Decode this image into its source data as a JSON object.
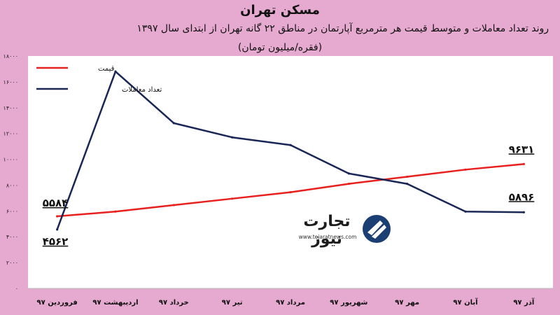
{
  "chart_data": {
    "type": "line",
    "title": "مسکن تهران",
    "subtitle": "روند تعداد معاملات و متوسط قیمت هر مترمربع آپارتمان در مناطق ۲۲ گانه تهران از ابتدای سال ۱۳۹۷",
    "unit_note": "(فقره/میلیون تومان)",
    "categories": [
      "فروردین ۹۷",
      "اردیبهشت ۹۷",
      "خرداد ۹۷",
      "تیر ۹۷",
      "مرداد ۹۷",
      "شهریور ۹۷",
      "مهر ۹۷",
      "آبان ۹۷",
      "آذر ۹۷"
    ],
    "y_ticks": [
      "۰",
      "۲۰۰۰",
      "۴۰۰۰",
      "۶۰۰۰",
      "۸۰۰۰",
      "۱۰۰۰۰",
      "۱۲۰۰۰",
      "۱۴۰۰۰",
      "۱۶۰۰۰",
      "۱۸۰۰۰"
    ],
    "ylim": [
      0,
      18000
    ],
    "legend_placement": "top-left",
    "series": [
      {
        "name": "قیمت",
        "color": "#e8201e",
        "values": [
          5584,
          5950,
          6450,
          6950,
          7450,
          8100,
          8650,
          9200,
          9631
        ],
        "start_label": "۵۵۸۴",
        "end_label": "۹۶۳۱"
      },
      {
        "name": "تعداد معاملات",
        "color": "#1a2756",
        "values": [
          4562,
          16800,
          12800,
          11700,
          11100,
          8900,
          8100,
          5950,
          5896
        ],
        "start_label": "۴۵۶۲",
        "end_label": "۵۸۹۶"
      }
    ]
  },
  "logo": {
    "name": "تجارت نیوز",
    "url": "www.tejaratnews.com"
  }
}
